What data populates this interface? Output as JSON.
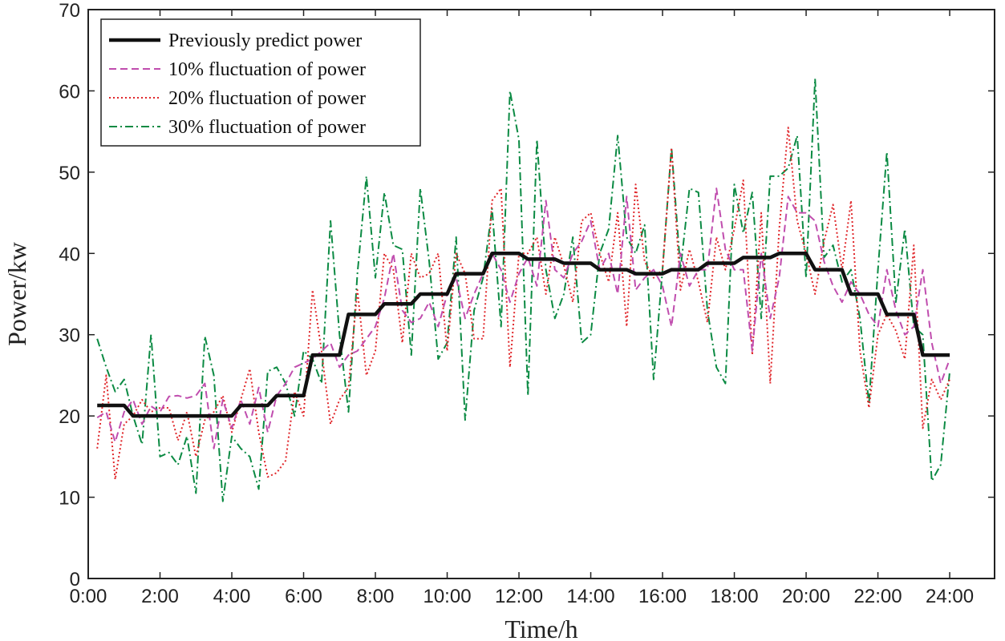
{
  "chart_data": {
    "type": "line",
    "title": "",
    "xlabel": "Time/h",
    "ylabel": "Power/kw",
    "xlim": [
      0,
      25.25
    ],
    "ylim": [
      0,
      70
    ],
    "xticks": [
      0,
      2,
      4,
      6,
      8,
      10,
      12,
      14,
      16,
      18,
      20,
      22,
      24
    ],
    "xtick_labels": [
      "0:00",
      "2:00",
      "4:00",
      "6:00",
      "8:00",
      "10:00",
      "12:00",
      "14:00",
      "16:00",
      "18:00",
      "20:00",
      "22:00",
      "24:00"
    ],
    "yticks": [
      0,
      10,
      20,
      30,
      40,
      50,
      60,
      70
    ],
    "ytick_labels": [
      "0",
      "10",
      "20",
      "30",
      "40",
      "50",
      "60",
      "70"
    ],
    "legend_position": "top-left",
    "series": [
      {
        "name": "Previously predict power",
        "color": "#111111",
        "style": "solid",
        "x": [
          0.25,
          1.0,
          1.25,
          4.0,
          4.25,
          5.0,
          5.25,
          6.0,
          6.25,
          7.0,
          7.25,
          8.0,
          8.25,
          9.0,
          9.25,
          10.0,
          10.25,
          11.0,
          11.25,
          12.0,
          12.25,
          13.0,
          13.25,
          14.0,
          14.25,
          15.0,
          15.25,
          16.0,
          16.25,
          17.0,
          17.25,
          18.0,
          18.25,
          19.0,
          19.25,
          20.0,
          20.25,
          21.0,
          21.25,
          22.0,
          22.25,
          23.0,
          23.25,
          24.0
        ],
        "values": [
          21.3,
          21.3,
          20.0,
          20.0,
          21.3,
          21.3,
          22.5,
          22.5,
          27.5,
          27.5,
          32.5,
          32.5,
          33.8,
          33.8,
          35.0,
          35.0,
          37.5,
          37.5,
          40.0,
          40.0,
          39.3,
          39.3,
          38.8,
          38.8,
          38.0,
          38.0,
          37.5,
          37.5,
          38.0,
          38.0,
          38.8,
          38.8,
          39.5,
          39.5,
          40.0,
          40.0,
          38.0,
          38.0,
          35.0,
          35.0,
          32.5,
          32.5,
          27.5,
          27.5
        ]
      },
      {
        "name": "10% fluctuation of power",
        "color": "#c04dae",
        "style": "dashed",
        "x": [
          0.25,
          0.5,
          0.75,
          1.0,
          1.25,
          1.5,
          1.75,
          2.0,
          2.25,
          2.5,
          2.75,
          3.0,
          3.25,
          3.5,
          3.75,
          4.0,
          4.25,
          4.5,
          4.75,
          5.0,
          5.25,
          5.5,
          5.75,
          6.0,
          6.25,
          6.5,
          6.75,
          7.0,
          7.25,
          7.5,
          7.75,
          8.0,
          8.25,
          8.5,
          8.75,
          9.0,
          9.25,
          9.5,
          9.75,
          10.0,
          10.25,
          10.5,
          10.75,
          11.0,
          11.25,
          11.5,
          11.75,
          12.0,
          12.25,
          12.5,
          12.75,
          13.0,
          13.25,
          13.5,
          13.75,
          14.0,
          14.25,
          14.5,
          14.75,
          15.0,
          15.25,
          15.5,
          15.75,
          16.0,
          16.25,
          16.5,
          16.75,
          17.0,
          17.25,
          17.5,
          17.75,
          18.0,
          18.25,
          18.5,
          18.75,
          19.0,
          19.25,
          19.5,
          19.75,
          20.0,
          20.25,
          20.5,
          20.75,
          21.0,
          21.25,
          21.5,
          21.75,
          22.0,
          22.25,
          22.5,
          22.75,
          23.0,
          23.25,
          23.5,
          23.75,
          24.0
        ],
        "values": [
          19.8,
          20.5,
          16.8,
          20.5,
          22.0,
          19.0,
          21.2,
          20.5,
          22.4,
          22.5,
          22.2,
          22.5,
          24.0,
          16.0,
          22.0,
          18.5,
          22.0,
          19.0,
          23.5,
          18.0,
          22.5,
          24.0,
          26.0,
          26.5,
          27.0,
          28.0,
          29.0,
          26.0,
          27.5,
          28.0,
          29.5,
          31.0,
          34.5,
          40.0,
          33.0,
          31.5,
          32.0,
          34.0,
          31.0,
          35.0,
          37.0,
          32.0,
          35.0,
          37.5,
          40.0,
          38.0,
          34.0,
          37.5,
          39.5,
          36.0,
          46.5,
          38.0,
          37.0,
          40.0,
          41.5,
          44.0,
          38.0,
          40.0,
          35.0,
          47.0,
          35.5,
          37.0,
          38.0,
          36.0,
          31.0,
          40.0,
          36.0,
          38.0,
          38.0,
          48.0,
          40.5,
          38.0,
          38.0,
          28.0,
          40.0,
          32.0,
          37.0,
          47.0,
          45.0,
          45.0,
          44.0,
          39.0,
          36.0,
          34.0,
          36.5,
          35.0,
          32.5,
          31.0,
          38.0,
          33.0,
          30.0,
          31.0,
          38.0,
          29.0,
          24.0,
          27.0
        ]
      },
      {
        "name": "20% fluctuation of power",
        "color": "#e0262a",
        "style": "dotted",
        "x": [
          0.25,
          0.5,
          0.75,
          1.0,
          1.25,
          1.5,
          1.75,
          2.0,
          2.25,
          2.5,
          2.75,
          3.0,
          3.25,
          3.5,
          3.75,
          4.0,
          4.25,
          4.5,
          4.75,
          5.0,
          5.25,
          5.5,
          5.75,
          6.0,
          6.25,
          6.5,
          6.75,
          7.0,
          7.25,
          7.5,
          7.75,
          8.0,
          8.25,
          8.5,
          8.75,
          9.0,
          9.25,
          9.5,
          9.75,
          10.0,
          10.25,
          10.5,
          10.75,
          11.0,
          11.25,
          11.5,
          11.75,
          12.0,
          12.25,
          12.5,
          12.75,
          13.0,
          13.25,
          13.5,
          13.75,
          14.0,
          14.25,
          14.5,
          14.75,
          15.0,
          15.25,
          15.5,
          15.75,
          16.0,
          16.25,
          16.5,
          16.75,
          17.0,
          17.25,
          17.5,
          17.75,
          18.0,
          18.25,
          18.5,
          18.75,
          19.0,
          19.25,
          19.5,
          19.75,
          20.0,
          20.25,
          20.5,
          20.75,
          21.0,
          21.25,
          21.5,
          21.75,
          22.0,
          22.25,
          22.5,
          22.75,
          23.0,
          23.25,
          23.5,
          23.75,
          24.0
        ],
        "values": [
          16.0,
          25.0,
          12.2,
          19.0,
          20.0,
          22.0,
          20.5,
          21.0,
          21.0,
          17.0,
          20.5,
          15.0,
          19.5,
          20.5,
          22.5,
          18.0,
          22.0,
          25.8,
          18.0,
          12.5,
          13.0,
          14.5,
          23.0,
          20.0,
          35.5,
          28.0,
          19.0,
          22.0,
          23.5,
          35.5,
          25.0,
          28.0,
          40.0,
          38.0,
          29.0,
          40.0,
          37.0,
          37.5,
          40.0,
          28.0,
          40.0,
          37.5,
          29.5,
          29.5,
          46.5,
          48.0,
          26.0,
          40.0,
          40.0,
          42.0,
          35.0,
          42.0,
          38.5,
          34.0,
          44.0,
          45.0,
          40.0,
          36.5,
          45.0,
          31.0,
          48.5,
          39.0,
          37.0,
          38.0,
          53.0,
          35.5,
          40.5,
          36.5,
          31.5,
          42.0,
          38.0,
          43.0,
          49.0,
          27.5,
          45.0,
          24.0,
          43.0,
          55.5,
          44.0,
          40.0,
          35.0,
          41.5,
          46.0,
          38.0,
          46.5,
          28.0,
          21.0,
          30.0,
          32.5,
          30.5,
          27.0,
          41.0,
          18.5,
          24.5,
          22.0,
          24.5
        ]
      },
      {
        "name": "30% fluctuation of power",
        "color": "#0b8a43",
        "style": "dashdot",
        "x": [
          0.25,
          0.5,
          0.75,
          1.0,
          1.25,
          1.5,
          1.75,
          2.0,
          2.25,
          2.5,
          2.75,
          3.0,
          3.25,
          3.5,
          3.75,
          4.0,
          4.25,
          4.5,
          4.75,
          5.0,
          5.25,
          5.5,
          5.75,
          6.0,
          6.25,
          6.5,
          6.75,
          7.0,
          7.25,
          7.5,
          7.75,
          8.0,
          8.25,
          8.5,
          8.75,
          9.0,
          9.25,
          9.5,
          9.75,
          10.0,
          10.25,
          10.5,
          10.75,
          11.0,
          11.25,
          11.5,
          11.75,
          12.0,
          12.25,
          12.5,
          12.75,
          13.0,
          13.25,
          13.5,
          13.75,
          14.0,
          14.25,
          14.5,
          14.75,
          15.0,
          15.25,
          15.5,
          15.75,
          16.0,
          16.25,
          16.5,
          16.75,
          17.0,
          17.25,
          17.5,
          17.75,
          18.0,
          18.25,
          18.5,
          18.75,
          19.0,
          19.25,
          19.5,
          19.75,
          20.0,
          20.25,
          20.5,
          20.75,
          21.0,
          21.25,
          21.5,
          21.75,
          22.0,
          22.25,
          22.5,
          22.75,
          23.0,
          23.25,
          23.5,
          23.75,
          24.0
        ],
        "values": [
          29.5,
          26.0,
          23.0,
          24.5,
          20.0,
          16.5,
          30.0,
          15.0,
          15.5,
          14.0,
          17.5,
          10.5,
          29.8,
          25.0,
          9.5,
          17.5,
          16.0,
          15.0,
          11.0,
          25.5,
          26.0,
          24.0,
          20.0,
          28.0,
          27.0,
          24.0,
          44.0,
          30.0,
          20.5,
          37.5,
          49.5,
          37.0,
          47.5,
          41.0,
          40.5,
          27.5,
          48.0,
          39.0,
          27.0,
          29.0,
          42.0,
          19.5,
          33.0,
          37.0,
          45.5,
          31.0,
          60.0,
          54.0,
          22.5,
          54.0,
          38.0,
          32.0,
          35.0,
          42.0,
          29.0,
          30.0,
          40.0,
          43.0,
          54.5,
          42.0,
          40.0,
          43.5,
          24.5,
          38.0,
          53.0,
          38.0,
          48.0,
          47.5,
          33.0,
          26.0,
          24.0,
          48.5,
          42.5,
          47.5,
          32.0,
          49.5,
          49.5,
          50.5,
          54.5,
          37.0,
          61.5,
          39.5,
          41.0,
          36.5,
          38.0,
          32.0,
          21.5,
          38.0,
          52.5,
          34.0,
          43.0,
          31.0,
          30.0,
          12.0,
          14.0,
          25.5
        ]
      }
    ]
  }
}
